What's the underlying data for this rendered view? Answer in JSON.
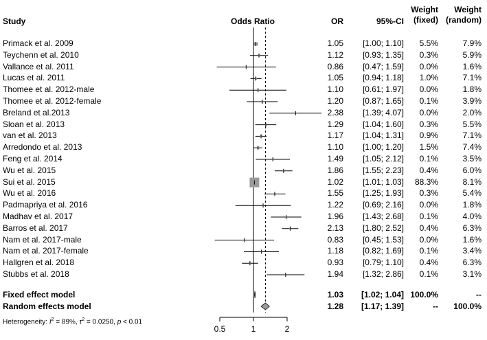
{
  "headers": {
    "study": "Study",
    "odds_ratio": "Odds Ratio",
    "or": "OR",
    "ci": "95%-CI",
    "weight_fixed_line1": "Weight",
    "weight_fixed_line2": "(fixed)",
    "weight_random_line1": "Weight",
    "weight_random_line2": "(random)"
  },
  "studies": [
    {
      "name": "Primack et al. 2009",
      "or": "1.05",
      "ci": "[1.00; 1.10]",
      "wf": "5.5%",
      "wr": "7.9%"
    },
    {
      "name": "Teychenn et al. 2010",
      "or": "1.12",
      "ci": "[0.93; 1.35]",
      "wf": "0.3%",
      "wr": "5.9%"
    },
    {
      "name": "Vallance et al. 2011",
      "or": "0.86",
      "ci": "[0.47; 1.59]",
      "wf": "0.0%",
      "wr": "1.6%"
    },
    {
      "name": "Lucas et al. 2011",
      "or": "1.05",
      "ci": "[0.94; 1.18]",
      "wf": "1.0%",
      "wr": "7.1%"
    },
    {
      "name": "Thomee et al. 2012-male",
      "or": "1.10",
      "ci": "[0.61; 1.97]",
      "wf": "0.0%",
      "wr": "1.8%"
    },
    {
      "name": "Thomee et al. 2012-female",
      "or": "1.20",
      "ci": "[0.87; 1.65]",
      "wf": "0.1%",
      "wr": "3.9%"
    },
    {
      "name": "Breland et al.2013",
      "or": "2.38",
      "ci": "[1.39; 4.07]",
      "wf": "0.0%",
      "wr": "2.0%"
    },
    {
      "name": "Sloan et al. 2013",
      "or": "1.29",
      "ci": "[1.04; 1.60]",
      "wf": "0.3%",
      "wr": "5.5%"
    },
    {
      "name": "van et al. 2013",
      "or": "1.17",
      "ci": "[1.04; 1.31]",
      "wf": "0.9%",
      "wr": "7.1%"
    },
    {
      "name": "Arredondo et al. 2013",
      "or": "1.10",
      "ci": "[1.00; 1.20]",
      "wf": "1.5%",
      "wr": "7.4%"
    },
    {
      "name": "Feng et al. 2014",
      "or": "1.49",
      "ci": "[1.05; 2.12]",
      "wf": "0.1%",
      "wr": "3.5%"
    },
    {
      "name": "Wu et al. 2015",
      "or": "1.86",
      "ci": "[1.55; 2.23]",
      "wf": "0.4%",
      "wr": "6.0%"
    },
    {
      "name": "Sui et al. 2015",
      "or": "1.02",
      "ci": "[1.01; 1.03]",
      "wf": "88.3%",
      "wr": "8.1%"
    },
    {
      "name": "Wu et al. 2016",
      "or": "1.55",
      "ci": "[1.25; 1.93]",
      "wf": "0.3%",
      "wr": "5.4%"
    },
    {
      "name": "Padmapriya et al. 2016",
      "or": "1.22",
      "ci": "[0.69; 2.16]",
      "wf": "0.0%",
      "wr": "1.8%"
    },
    {
      "name": "Madhav et al. 2017",
      "or": "1.96",
      "ci": "[1.43; 2.68]",
      "wf": "0.1%",
      "wr": "4.0%"
    },
    {
      "name": "Barros et al. 2017",
      "or": "2.13",
      "ci": "[1.80; 2.52]",
      "wf": "0.4%",
      "wr": "6.3%"
    },
    {
      "name": "Nam et al. 2017-male",
      "or": "0.83",
      "ci": "[0.45; 1.53]",
      "wf": "0.0%",
      "wr": "1.6%"
    },
    {
      "name": "Nam et al. 2017-female",
      "or": "1.18",
      "ci": "[0.82; 1.69]",
      "wf": "0.1%",
      "wr": "3.4%"
    },
    {
      "name": "Hallgren et al. 2018",
      "or": "0.93",
      "ci": "[0.79; 1.10]",
      "wf": "0.4%",
      "wr": "6.3%"
    },
    {
      "name": "Stubbs et al. 2018",
      "or": "1.94",
      "ci": "[1.32; 2.86]",
      "wf": "0.1%",
      "wr": "3.1%"
    }
  ],
  "summary": {
    "fixed": {
      "name": "Fixed effect model",
      "or": "1.03",
      "ci": "[1.02; 1.04]",
      "wf": "100.0%",
      "wr": "--"
    },
    "random": {
      "name": "Random effects model",
      "or": "1.28",
      "ci": "[1.17; 1.39]",
      "wf": "--",
      "wr": "100.0%"
    }
  },
  "heterogeneity": {
    "prefix": "Heterogeneity: ",
    "i2_symbol": "I",
    "i2_sup": "2",
    "i2_value": " = 89%, ",
    "tau_symbol": "τ",
    "tau_sup": "2",
    "tau_value": " = 0.0250, ",
    "p_symbol": "p",
    "p_value": " < 0.01"
  },
  "chart_data": {
    "type": "forest",
    "title": "",
    "xlabel": "Odds Ratio",
    "x_scale": "log",
    "xlim": [
      0.45,
      2.6
    ],
    "x_ticks": [
      0.5,
      1,
      2
    ],
    "x_tick_labels": [
      "0.5",
      "1",
      "2"
    ],
    "reference_line": 1,
    "summary_line_random": 1.28,
    "colors": {
      "box": "#9a9a9a",
      "line": "#000000",
      "diamond": "#9a9a9a"
    },
    "studies": [
      {
        "or": 1.05,
        "lo": 1.0,
        "hi": 1.1,
        "w_fixed": 5.5
      },
      {
        "or": 1.12,
        "lo": 0.93,
        "hi": 1.35,
        "w_fixed": 0.3
      },
      {
        "or": 0.86,
        "lo": 0.47,
        "hi": 1.59,
        "w_fixed": 0.0
      },
      {
        "or": 1.05,
        "lo": 0.94,
        "hi": 1.18,
        "w_fixed": 1.0
      },
      {
        "or": 1.1,
        "lo": 0.61,
        "hi": 1.97,
        "w_fixed": 0.0
      },
      {
        "or": 1.2,
        "lo": 0.87,
        "hi": 1.65,
        "w_fixed": 0.1
      },
      {
        "or": 2.38,
        "lo": 1.39,
        "hi": 4.07,
        "w_fixed": 0.0
      },
      {
        "or": 1.29,
        "lo": 1.04,
        "hi": 1.6,
        "w_fixed": 0.3
      },
      {
        "or": 1.17,
        "lo": 1.04,
        "hi": 1.31,
        "w_fixed": 0.9
      },
      {
        "or": 1.1,
        "lo": 1.0,
        "hi": 1.2,
        "w_fixed": 1.5
      },
      {
        "or": 1.49,
        "lo": 1.05,
        "hi": 2.12,
        "w_fixed": 0.1
      },
      {
        "or": 1.86,
        "lo": 1.55,
        "hi": 2.23,
        "w_fixed": 0.4
      },
      {
        "or": 1.02,
        "lo": 1.01,
        "hi": 1.03,
        "w_fixed": 88.3
      },
      {
        "or": 1.55,
        "lo": 1.25,
        "hi": 1.93,
        "w_fixed": 0.3
      },
      {
        "or": 1.22,
        "lo": 0.69,
        "hi": 2.16,
        "w_fixed": 0.0
      },
      {
        "or": 1.96,
        "lo": 1.43,
        "hi": 2.68,
        "w_fixed": 0.1
      },
      {
        "or": 2.13,
        "lo": 1.8,
        "hi": 2.52,
        "w_fixed": 0.4
      },
      {
        "or": 0.83,
        "lo": 0.45,
        "hi": 1.53,
        "w_fixed": 0.0
      },
      {
        "or": 1.18,
        "lo": 0.82,
        "hi": 1.69,
        "w_fixed": 0.1
      },
      {
        "or": 0.93,
        "lo": 0.79,
        "hi": 1.1,
        "w_fixed": 0.4
      },
      {
        "or": 1.94,
        "lo": 1.32,
        "hi": 2.86,
        "w_fixed": 0.1
      }
    ],
    "fixed_model": {
      "or": 1.03,
      "lo": 1.02,
      "hi": 1.04
    },
    "random_model": {
      "or": 1.28,
      "lo": 1.17,
      "hi": 1.39
    }
  }
}
